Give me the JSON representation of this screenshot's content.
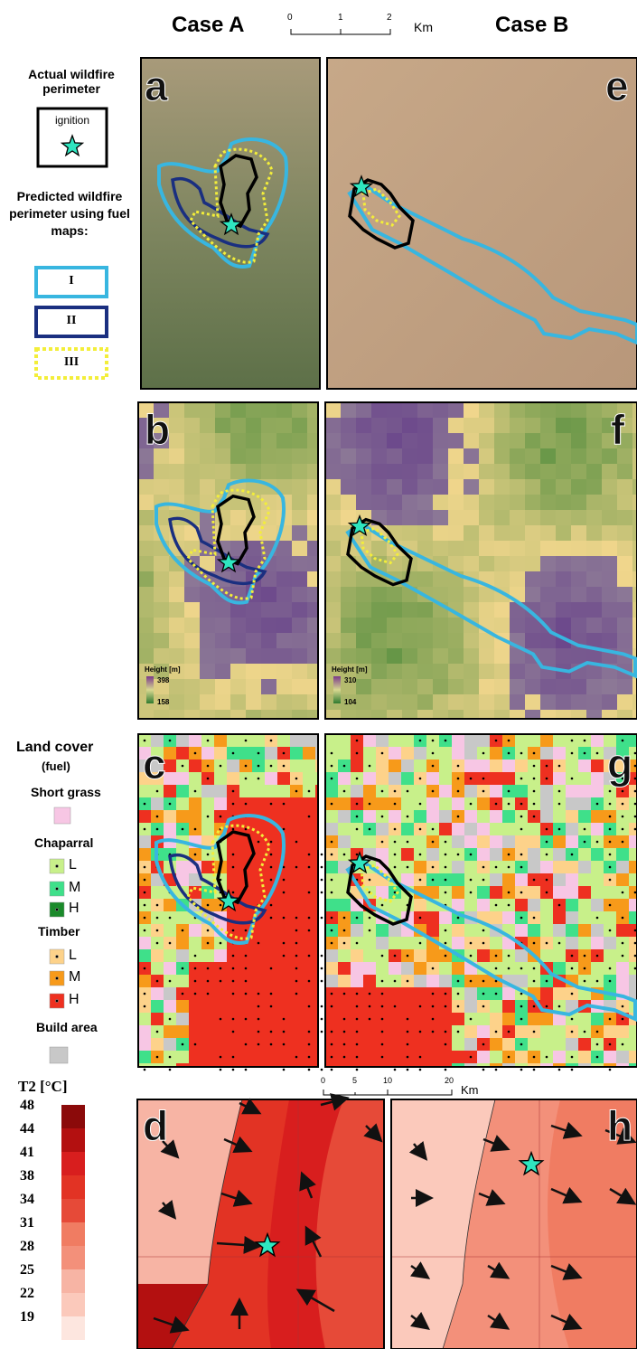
{
  "header": {
    "case_a": "Case A",
    "case_b": "Case B",
    "scale": {
      "ticks": [
        0,
        1,
        2
      ],
      "unit": "Km"
    }
  },
  "perimeter_legend": {
    "actual": "Actual wildfire perimeter",
    "ignition": "ignition",
    "predicted": "Predicted wildfire perimeter using fuel maps:",
    "fuel_maps": [
      "I",
      "II",
      "III"
    ]
  },
  "panels": [
    "a",
    "e",
    "b",
    "f",
    "c",
    "g",
    "d",
    "h"
  ],
  "height_legends": [
    {
      "title": "Height [m]",
      "max": 398,
      "min": 158
    },
    {
      "title": "Height [m]",
      "max": 310,
      "min": 104
    }
  ],
  "land_cover": {
    "title": "Land cover",
    "subtitle": "(fuel)",
    "classes": [
      {
        "name": "Short grass",
        "levels": []
      },
      {
        "name": "Chaparral",
        "levels": [
          "L",
          "M",
          "H"
        ]
      },
      {
        "name": "Timber",
        "levels": [
          "L",
          "M",
          "H"
        ]
      },
      {
        "name": "Build area",
        "levels": []
      }
    ]
  },
  "temperature": {
    "title": "T2  [°C]",
    "ticks": [
      48,
      44,
      41,
      38,
      34,
      31,
      28,
      25,
      22,
      19
    ],
    "scale": {
      "ticks": [
        0,
        5,
        10,
        20
      ],
      "unit": "Km"
    }
  }
}
